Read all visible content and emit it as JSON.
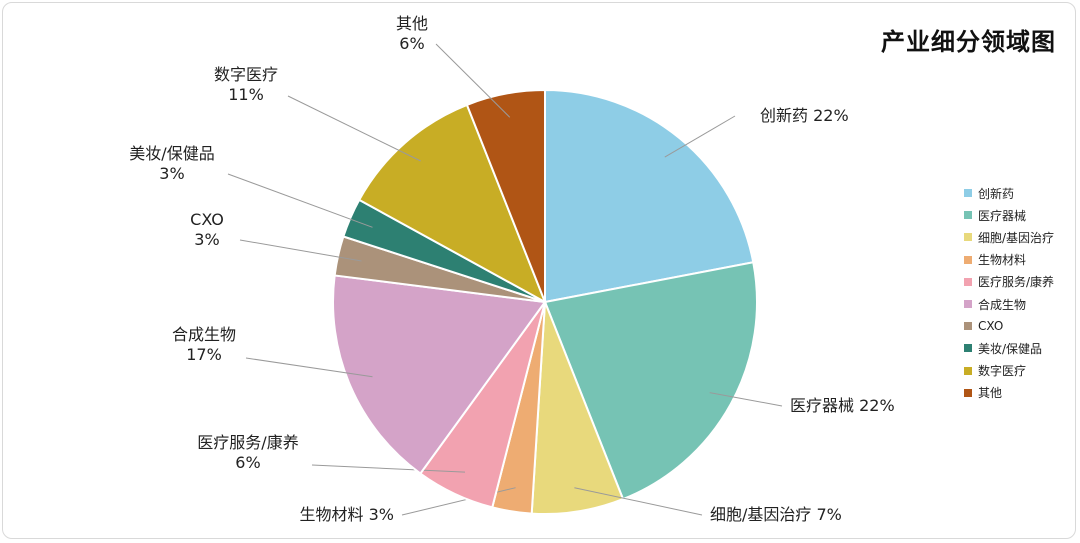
{
  "chart_data": {
    "type": "pie",
    "title": "产业细分领域图",
    "slices": [
      {
        "name": "创新药",
        "value": 22,
        "label": "创新药 22%",
        "color": "#8ecde6"
      },
      {
        "name": "医疗器械",
        "value": 22,
        "label": "医疗器械 22%",
        "color": "#76c3b4"
      },
      {
        "name": "细胞/基因治疗",
        "value": 7,
        "label": "细胞/基因治疗 7%",
        "color": "#e8d97c"
      },
      {
        "name": "生物材料",
        "value": 3,
        "label": "生物材料 3%",
        "color": "#eeac72"
      },
      {
        "name": "医疗服务/康养",
        "value": 6,
        "label": "医疗服务/康养|6%",
        "color": "#f2a2b0"
      },
      {
        "name": "合成生物",
        "value": 17,
        "label": "合成生物|17%",
        "color": "#d4a3c8"
      },
      {
        "name": "CXO",
        "value": 3,
        "label": "CXO|3%",
        "color": "#ab927a"
      },
      {
        "name": "美妆/保健品",
        "value": 3,
        "label": "美妆/保健品|3%",
        "color": "#2d8072"
      },
      {
        "name": "数字医疗",
        "value": 11,
        "label": "数字医疗|11%",
        "color": "#c8ad25"
      },
      {
        "name": "其他",
        "value": 6,
        "label": "其他|6%",
        "color": "#b05515"
      }
    ],
    "legend_position": "right"
  }
}
